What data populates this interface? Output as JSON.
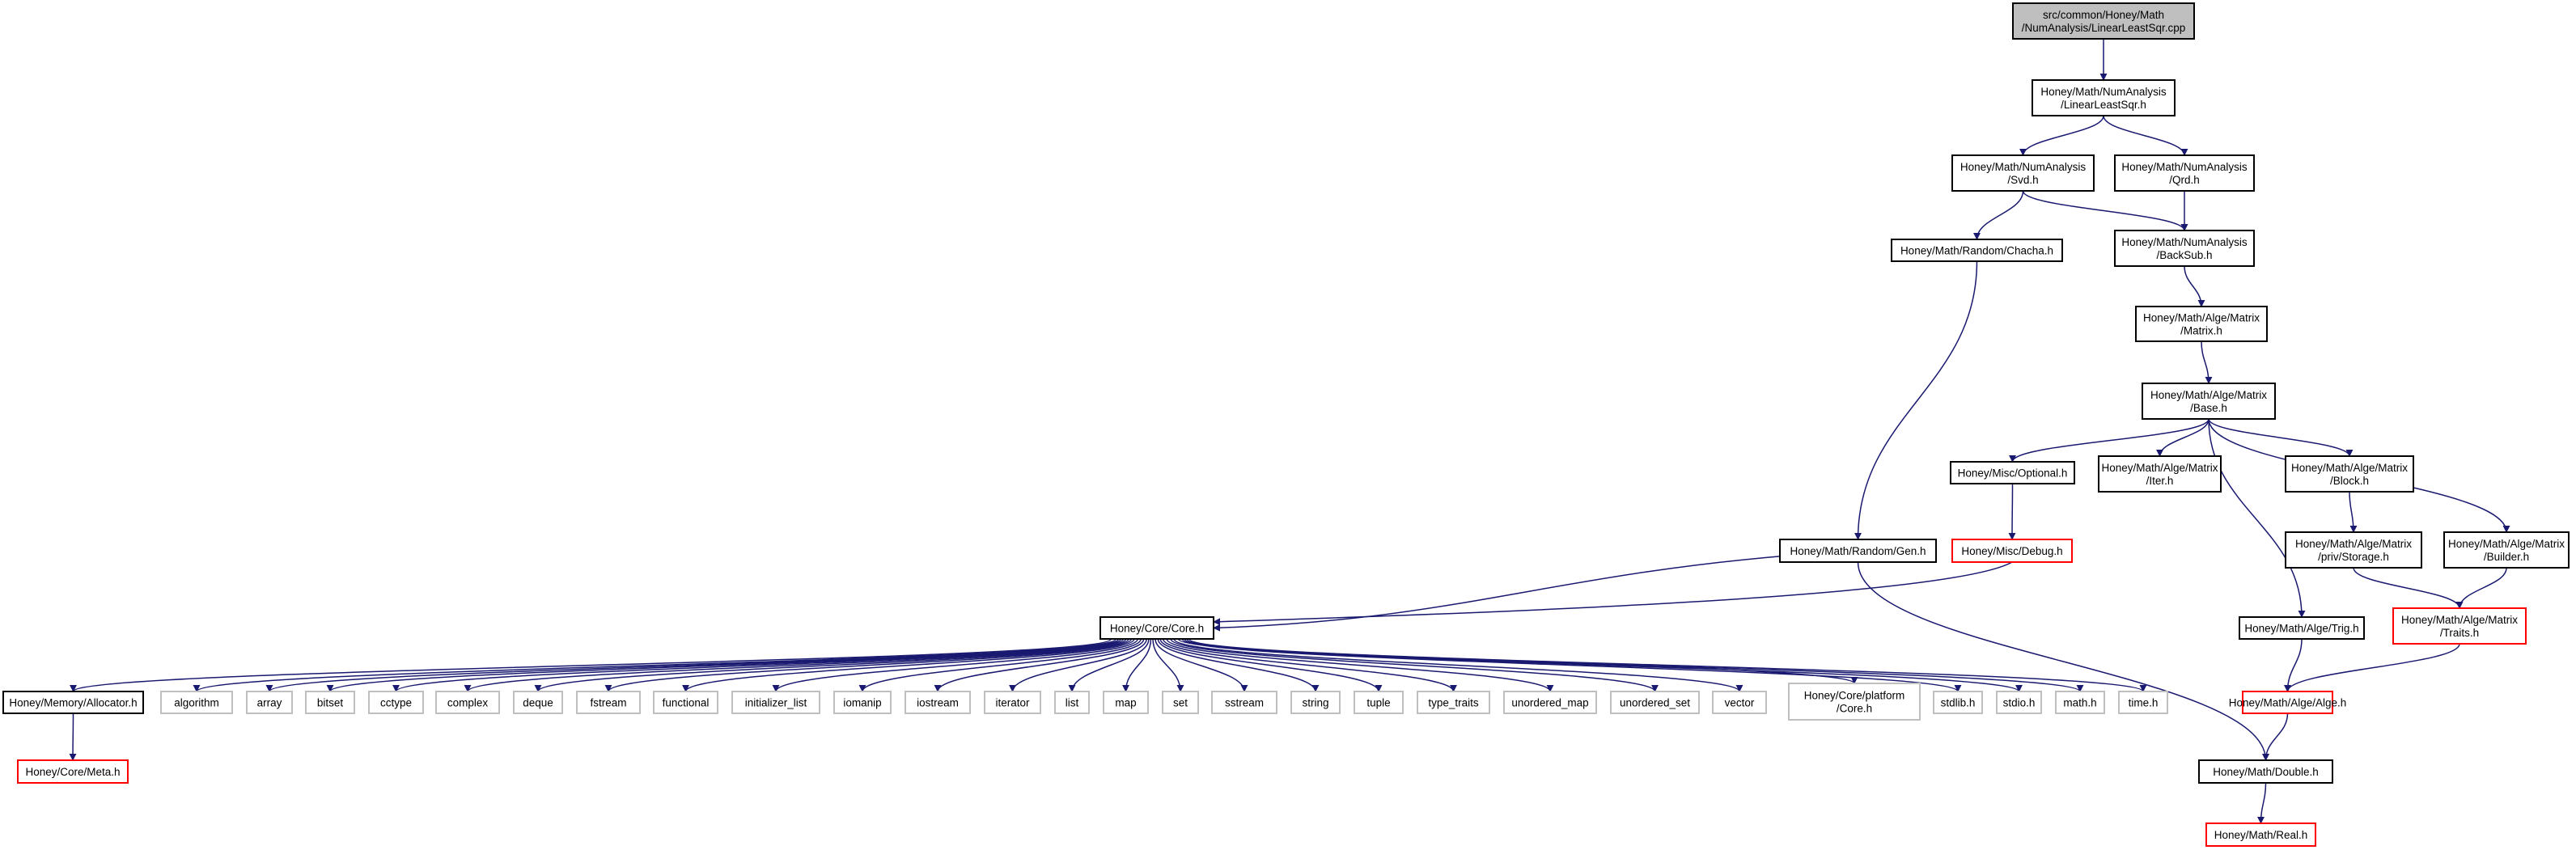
{
  "graph": {
    "edge_color": "#191970",
    "node_border_default": "#000000",
    "node_border_system": "#bfbfbf",
    "node_border_truncated": "#ff0000",
    "root_fill": "#bfbfbf",
    "nodes": [
      {
        "id": "root",
        "lines": [
          "src/common/Honey/Math",
          "/NumAnalysis/LinearLeastSqr.cpp"
        ],
        "style": "root"
      },
      {
        "id": "lls",
        "lines": [
          "Honey/Math/NumAnalysis",
          "/LinearLeastSqr.h"
        ],
        "style": "default"
      },
      {
        "id": "svd",
        "lines": [
          "Honey/Math/NumAnalysis",
          "/Svd.h"
        ],
        "style": "default"
      },
      {
        "id": "qrd",
        "lines": [
          "Honey/Math/NumAnalysis",
          "/Qrd.h"
        ],
        "style": "default"
      },
      {
        "id": "chacha",
        "lines": [
          "Honey/Math/Random/Chacha.h"
        ],
        "style": "default"
      },
      {
        "id": "backsub",
        "lines": [
          "Honey/Math/NumAnalysis",
          "/BackSub.h"
        ],
        "style": "default"
      },
      {
        "id": "matrix",
        "lines": [
          "Honey/Math/Alge/Matrix",
          "/Matrix.h"
        ],
        "style": "default"
      },
      {
        "id": "base",
        "lines": [
          "Honey/Math/Alge/Matrix",
          "/Base.h"
        ],
        "style": "default"
      },
      {
        "id": "optional",
        "lines": [
          "Honey/Misc/Optional.h"
        ],
        "style": "default"
      },
      {
        "id": "iter",
        "lines": [
          "Honey/Math/Alge/Matrix",
          "/Iter.h"
        ],
        "style": "default"
      },
      {
        "id": "block",
        "lines": [
          "Honey/Math/Alge/Matrix",
          "/Block.h"
        ],
        "style": "default"
      },
      {
        "id": "storage",
        "lines": [
          "Honey/Math/Alge/Matrix",
          "/priv/Storage.h"
        ],
        "style": "default"
      },
      {
        "id": "builder",
        "lines": [
          "Honey/Math/Alge/Matrix",
          "/Builder.h"
        ],
        "style": "default"
      },
      {
        "id": "debug",
        "lines": [
          "Honey/Misc/Debug.h"
        ],
        "style": "truncated"
      },
      {
        "id": "gen",
        "lines": [
          "Honey/Math/Random/Gen.h"
        ],
        "style": "default"
      },
      {
        "id": "core",
        "lines": [
          "Honey/Core/Core.h"
        ],
        "style": "default"
      },
      {
        "id": "trig",
        "lines": [
          "Honey/Math/Alge/Trig.h"
        ],
        "style": "default"
      },
      {
        "id": "traits",
        "lines": [
          "Honey/Math/Alge/Matrix",
          "/Traits.h"
        ],
        "style": "truncated"
      },
      {
        "id": "alge",
        "lines": [
          "Honey/Math/Alge/Alge.h"
        ],
        "style": "truncated"
      },
      {
        "id": "double",
        "lines": [
          "Honey/Math/Double.h"
        ],
        "style": "default"
      },
      {
        "id": "real",
        "lines": [
          "Honey/Math/Real.h"
        ],
        "style": "truncated"
      },
      {
        "id": "allocator",
        "lines": [
          "Honey/Memory/Allocator.h"
        ],
        "style": "default"
      },
      {
        "id": "meta",
        "lines": [
          "Honey/Core/Meta.h"
        ],
        "style": "truncated"
      },
      {
        "id": "algorithm",
        "lines": [
          "algorithm"
        ],
        "style": "system"
      },
      {
        "id": "array",
        "lines": [
          "array"
        ],
        "style": "system"
      },
      {
        "id": "bitset",
        "lines": [
          "bitset"
        ],
        "style": "system"
      },
      {
        "id": "cctype",
        "lines": [
          "cctype"
        ],
        "style": "system"
      },
      {
        "id": "complex",
        "lines": [
          "complex"
        ],
        "style": "system"
      },
      {
        "id": "deque",
        "lines": [
          "deque"
        ],
        "style": "system"
      },
      {
        "id": "fstream",
        "lines": [
          "fstream"
        ],
        "style": "system"
      },
      {
        "id": "functional",
        "lines": [
          "functional"
        ],
        "style": "system"
      },
      {
        "id": "initializer_list",
        "lines": [
          "initializer_list"
        ],
        "style": "system"
      },
      {
        "id": "iomanip",
        "lines": [
          "iomanip"
        ],
        "style": "system"
      },
      {
        "id": "iostream",
        "lines": [
          "iostream"
        ],
        "style": "system"
      },
      {
        "id": "iterator",
        "lines": [
          "iterator"
        ],
        "style": "system"
      },
      {
        "id": "list",
        "lines": [
          "list"
        ],
        "style": "system"
      },
      {
        "id": "map",
        "lines": [
          "map"
        ],
        "style": "system"
      },
      {
        "id": "set",
        "lines": [
          "set"
        ],
        "style": "system"
      },
      {
        "id": "sstream",
        "lines": [
          "sstream"
        ],
        "style": "system"
      },
      {
        "id": "string",
        "lines": [
          "string"
        ],
        "style": "system"
      },
      {
        "id": "tuple",
        "lines": [
          "tuple"
        ],
        "style": "system"
      },
      {
        "id": "type_traits",
        "lines": [
          "type_traits"
        ],
        "style": "system"
      },
      {
        "id": "unordered_map",
        "lines": [
          "unordered_map"
        ],
        "style": "system"
      },
      {
        "id": "unordered_set",
        "lines": [
          "unordered_set"
        ],
        "style": "system"
      },
      {
        "id": "vector",
        "lines": [
          "vector"
        ],
        "style": "system"
      },
      {
        "id": "coreplatform",
        "lines": [
          "Honey/Core/platform",
          "/Core.h"
        ],
        "style": "system"
      },
      {
        "id": "stdlib",
        "lines": [
          "stdlib.h"
        ],
        "style": "system"
      },
      {
        "id": "stdio",
        "lines": [
          "stdio.h"
        ],
        "style": "system"
      },
      {
        "id": "math",
        "lines": [
          "math.h"
        ],
        "style": "system"
      },
      {
        "id": "time",
        "lines": [
          "time.h"
        ],
        "style": "system"
      }
    ],
    "edges": [
      [
        "root",
        "lls"
      ],
      [
        "lls",
        "svd"
      ],
      [
        "lls",
        "qrd"
      ],
      [
        "svd",
        "chacha"
      ],
      [
        "svd",
        "backsub"
      ],
      [
        "qrd",
        "backsub"
      ],
      [
        "chacha",
        "gen"
      ],
      [
        "backsub",
        "matrix"
      ],
      [
        "matrix",
        "base"
      ],
      [
        "base",
        "optional"
      ],
      [
        "base",
        "iter"
      ],
      [
        "base",
        "block"
      ],
      [
        "base",
        "builder"
      ],
      [
        "base",
        "trig"
      ],
      [
        "block",
        "storage"
      ],
      [
        "storage",
        "traits"
      ],
      [
        "builder",
        "traits"
      ],
      [
        "optional",
        "debug"
      ],
      [
        "debug",
        "core"
      ],
      [
        "gen",
        "core"
      ],
      [
        "gen",
        "double"
      ],
      [
        "traits",
        "alge"
      ],
      [
        "trig",
        "alge"
      ],
      [
        "alge",
        "double"
      ],
      [
        "double",
        "real"
      ],
      [
        "allocator",
        "meta"
      ],
      [
        "core",
        "allocator"
      ],
      [
        "core",
        "algorithm"
      ],
      [
        "core",
        "array"
      ],
      [
        "core",
        "bitset"
      ],
      [
        "core",
        "cctype"
      ],
      [
        "core",
        "complex"
      ],
      [
        "core",
        "deque"
      ],
      [
        "core",
        "fstream"
      ],
      [
        "core",
        "functional"
      ],
      [
        "core",
        "initializer_list"
      ],
      [
        "core",
        "iomanip"
      ],
      [
        "core",
        "iostream"
      ],
      [
        "core",
        "iterator"
      ],
      [
        "core",
        "list"
      ],
      [
        "core",
        "map"
      ],
      [
        "core",
        "set"
      ],
      [
        "core",
        "sstream"
      ],
      [
        "core",
        "string"
      ],
      [
        "core",
        "tuple"
      ],
      [
        "core",
        "type_traits"
      ],
      [
        "core",
        "unordered_map"
      ],
      [
        "core",
        "unordered_set"
      ],
      [
        "core",
        "vector"
      ],
      [
        "core",
        "coreplatform"
      ],
      [
        "core",
        "stdlib"
      ],
      [
        "core",
        "stdio"
      ],
      [
        "core",
        "math"
      ],
      [
        "core",
        "time"
      ]
    ]
  }
}
